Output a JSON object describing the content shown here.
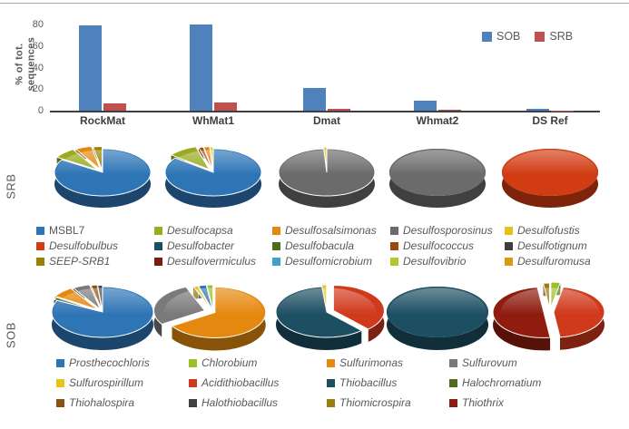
{
  "colors": {
    "sob_bar": "#4f81bd",
    "srb_bar": "#c0504d",
    "axis_text": "#595959",
    "category_text": "#3d3d3d",
    "taxa": {
      "MSBL7": "#2e75b6",
      "Desulfocapsa": "#9aab1f",
      "Desulfosalsimonas": "#e5880f",
      "Desulfosporosinus": "#6b6b6b",
      "Desulfofustis": "#e6c118",
      "Desulfobulbus": "#d13c12",
      "Desulfobacter": "#1d4f63",
      "Desulfobacula": "#4e6b1e",
      "Desulfococcus": "#9c4a12",
      "Desulfotignum": "#3d3d3d",
      "SEEP-SRB1": "#998200",
      "Desulfovermiculus": "#7e1b10",
      "Desulfomicrobium": "#41a0d0",
      "Desulfovibrio": "#b5c62c",
      "Desulfuromusa": "#dd9a10",
      "Prosthecochloris": "#2e75b6",
      "Chlorobium": "#9dc026",
      "Sulfurimonas": "#e5880f",
      "Sulfurovum": "#7a7a7a",
      "Sulfurospirillum": "#e8c417",
      "Acidithiobacillus": "#d0391b",
      "Thiobacillus": "#1d4f63",
      "Halochromatium": "#4e6b1e",
      "Thiohalospira": "#8a5212",
      "Halothiobacillus": "#404040",
      "Thiomicrospira": "#9c7d10",
      "Thiothrix": "#8f1c0f"
    }
  },
  "chart_data": [
    {
      "type": "bar",
      "title": "",
      "categories": [
        "RockMat",
        "WhMat1",
        "Dmat",
        "Whmat2",
        "DS Ref"
      ],
      "series": [
        {
          "name": "SOB",
          "values": [
            79,
            80,
            21,
            9.5,
            1.5
          ]
        },
        {
          "name": "SRB",
          "values": [
            7,
            7.5,
            1.5,
            0.8,
            0.2
          ]
        }
      ],
      "ylabel": "% of tot. sequences",
      "ylabel_line1": "% of tot.",
      "ylabel_line2": "sequences",
      "ylim": [
        0,
        80
      ],
      "yticks": [
        0,
        20,
        40,
        60,
        80
      ],
      "grid": false,
      "legend_position": "top-right"
    },
    {
      "type": "pie-row",
      "row_label": "SRB",
      "pies": [
        {
          "sample": "RockMat",
          "slices": [
            {
              "name": "MSBL7",
              "value": 84,
              "explode": 0
            },
            {
              "name": "Desulfocapsa",
              "value": 7.5,
              "explode": 8
            },
            {
              "name": "Desulfosalsimonas",
              "value": 5.5,
              "explode": 7
            },
            {
              "name": "SEEP-SRB1",
              "value": 3,
              "explode": 5
            }
          ]
        },
        {
          "sample": "WhMat1",
          "slices": [
            {
              "name": "MSBL7",
              "value": 85.5,
              "explode": 0
            },
            {
              "name": "Desulfocapsa",
              "value": 10,
              "explode": 8
            },
            {
              "name": "Desulfococcus",
              "value": 1.5,
              "explode": 5
            },
            {
              "name": "Desulfosalsimonas",
              "value": 2,
              "explode": 5
            },
            {
              "name": "Desulfofustis",
              "value": 1,
              "explode": 4
            }
          ]
        },
        {
          "sample": "Dmat",
          "slices": [
            {
              "name": "Desulfosporosinus",
              "value": 99,
              "explode": 0
            },
            {
              "name": "Desulfofustis",
              "value": 1,
              "explode": 4
            }
          ]
        },
        {
          "sample": "Whmat2",
          "slices": [
            {
              "name": "Desulfosporosinus",
              "value": 100,
              "explode": 0
            }
          ]
        },
        {
          "sample": "DS Ref",
          "slices": [
            {
              "name": "Desulfobulbus",
              "value": 100,
              "explode": 0
            }
          ]
        }
      ]
    },
    {
      "type": "pie-row",
      "row_label": "SOB",
      "pies": [
        {
          "sample": "RockMat",
          "slices": [
            {
              "name": "Prosthecochloris",
              "value": 82.5,
              "explode": 0
            },
            {
              "name": "Halochromatium",
              "value": 1.5,
              "explode": 4
            },
            {
              "name": "Sulfurimonas",
              "value": 7,
              "explode": 7
            },
            {
              "name": "Sulfurovum",
              "value": 5.5,
              "explode": 6
            },
            {
              "name": "Thiohalospira",
              "value": 2,
              "explode": 4
            },
            {
              "name": "Halothiobacillus",
              "value": 1.5,
              "explode": 3
            }
          ]
        },
        {
          "sample": "WhMat1",
          "slices": [
            {
              "name": "Sulfurimonas",
              "value": 66,
              "explode": 2
            },
            {
              "name": "Sulfurovum",
              "value": 28,
              "explode": 10
            },
            {
              "name": "Sulfurospirillum",
              "value": 1.5,
              "explode": 4
            },
            {
              "name": "Prosthecochloris",
              "value": 2.5,
              "explode": 4
            },
            {
              "name": "Chlorobium",
              "value": 2,
              "explode": 4
            }
          ]
        },
        {
          "sample": "Dmat",
          "slices": [
            {
              "name": "Acidithiobacillus",
              "value": 38,
              "explode": 8
            },
            {
              "name": "Thiobacillus",
              "value": 60.5,
              "explode": 0
            },
            {
              "name": "Sulfurospirillum",
              "value": 1.5,
              "explode": 4
            }
          ]
        },
        {
          "sample": "Whmat2",
          "slices": [
            {
              "name": "Thiobacillus",
              "value": 100,
              "explode": 0
            }
          ]
        },
        {
          "sample": "DS Ref",
          "slices": [
            {
              "name": "Chlorobium",
              "value": 3,
              "explode": 10
            },
            {
              "name": "Acidithiobacillus",
              "value": 45,
              "explode": 4
            },
            {
              "name": "Thiothrix",
              "value": 50,
              "explode": 7
            },
            {
              "name": "Thiomicrospira",
              "value": 2,
              "explode": 8
            }
          ]
        }
      ]
    }
  ],
  "legends": {
    "srb": {
      "items": [
        {
          "label": "MSBL7",
          "italic": false
        },
        {
          "label": "Desulfocapsa",
          "italic": true
        },
        {
          "label": "Desulfosalsimonas",
          "italic": true
        },
        {
          "label": "Desulfosporosinus",
          "italic": true
        },
        {
          "label": "Desulfofustis",
          "italic": true
        },
        {
          "label": "Desulfobulbus",
          "italic": true
        },
        {
          "label": "Desulfobacter",
          "italic": true
        },
        {
          "label": "Desulfobacula",
          "italic": true
        },
        {
          "label": "Desulfococcus",
          "italic": true
        },
        {
          "label": "Desulfotignum",
          "italic": true
        },
        {
          "label": "SEEP-SRB1",
          "italic": true
        },
        {
          "label": "Desulfovermiculus",
          "italic": true
        },
        {
          "label": "Desulfomicrobium",
          "italic": true
        },
        {
          "label": "Desulfovibrio",
          "italic": true
        },
        {
          "label": "Desulfuromusa",
          "italic": true
        }
      ]
    },
    "sob": {
      "items": [
        {
          "label": "Prosthecochloris",
          "italic": true
        },
        {
          "label": "Chlorobium",
          "italic": true
        },
        {
          "label": "Sulfurimonas",
          "italic": true
        },
        {
          "label": "Sulfurovum",
          "italic": true
        },
        {
          "label": "Sulfurospirillum",
          "italic": true
        },
        {
          "label": "Acidithiobacillus",
          "italic": true
        },
        {
          "label": "Thiobacillus",
          "italic": true
        },
        {
          "label": "Halochromatium",
          "italic": true
        },
        {
          "label": "Thiohalospira",
          "italic": true
        },
        {
          "label": "Halothiobacillus",
          "italic": true
        },
        {
          "label": "Thiomicrospira",
          "italic": true
        },
        {
          "label": "Thiothrix",
          "italic": true
        }
      ]
    }
  }
}
